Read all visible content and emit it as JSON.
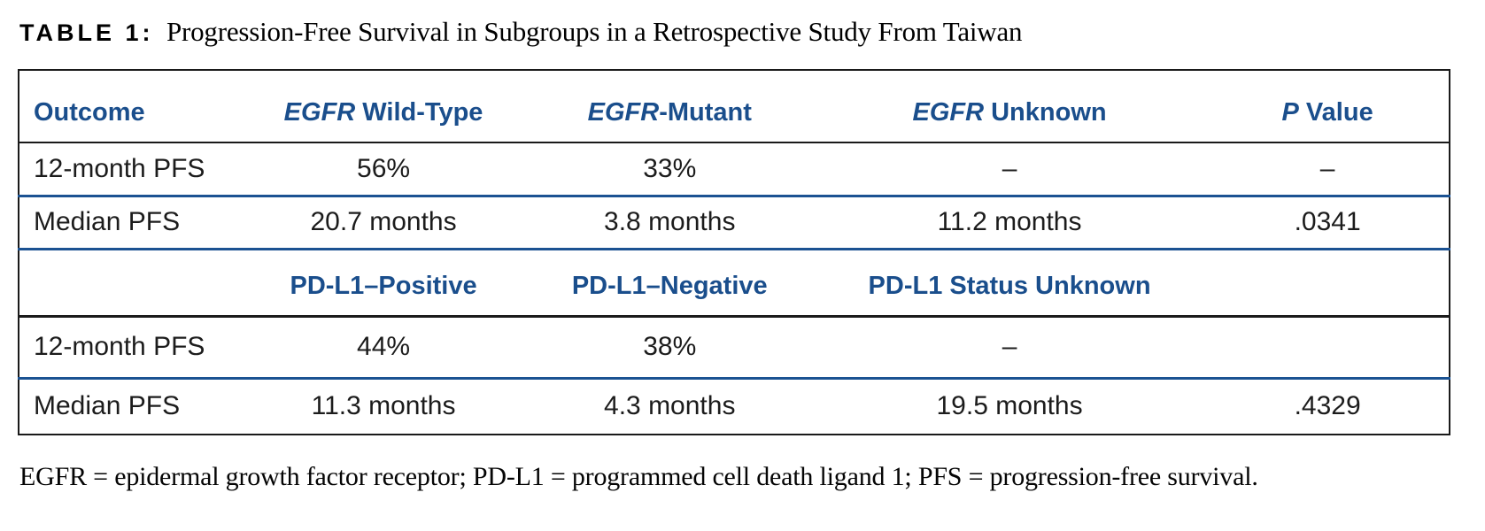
{
  "page": {
    "title_label": "TABLE 1:",
    "title_text": "Progression-Free Survival in Subgroups in a Retrospective Study From Taiwan",
    "footnote": "EGFR = epidermal growth factor receptor; PD-L1 = programmed cell death ligand 1; PFS = progression-free survival."
  },
  "colors": {
    "header_text_blue": "#1a4e8c",
    "divider_blue": "#1b5292",
    "border_black": "#1a1a1a"
  },
  "table": {
    "header_egfr": [
      {
        "em": "",
        "rest": "Outcome"
      },
      {
        "em": "EGFR",
        "rest": " Wild-Type"
      },
      {
        "em": "EGFR",
        "rest": "-Mutant"
      },
      {
        "em": "EGFR",
        "rest": " Unknown"
      },
      {
        "em": "P",
        "rest": " Value"
      }
    ],
    "header_pdl1": {
      "cells": [
        "",
        "PD-L1–Positive",
        "PD-L1–Negative",
        "PD-L1 Status Unknown",
        ""
      ]
    },
    "rows": [
      {
        "cells": [
          "12-month PFS",
          "56%",
          "33%",
          "–",
          "–"
        ]
      },
      {
        "cells": [
          "Median PFS",
          "20.7 months",
          "3.8 months",
          "11.2 months",
          ".0341"
        ]
      },
      {
        "cells": [
          "12-month PFS",
          "44%",
          "38%",
          "–",
          ""
        ]
      },
      {
        "cells": [
          "Median PFS",
          "11.3 months",
          "4.3 months",
          "19.5 months",
          ".4329"
        ]
      }
    ]
  }
}
